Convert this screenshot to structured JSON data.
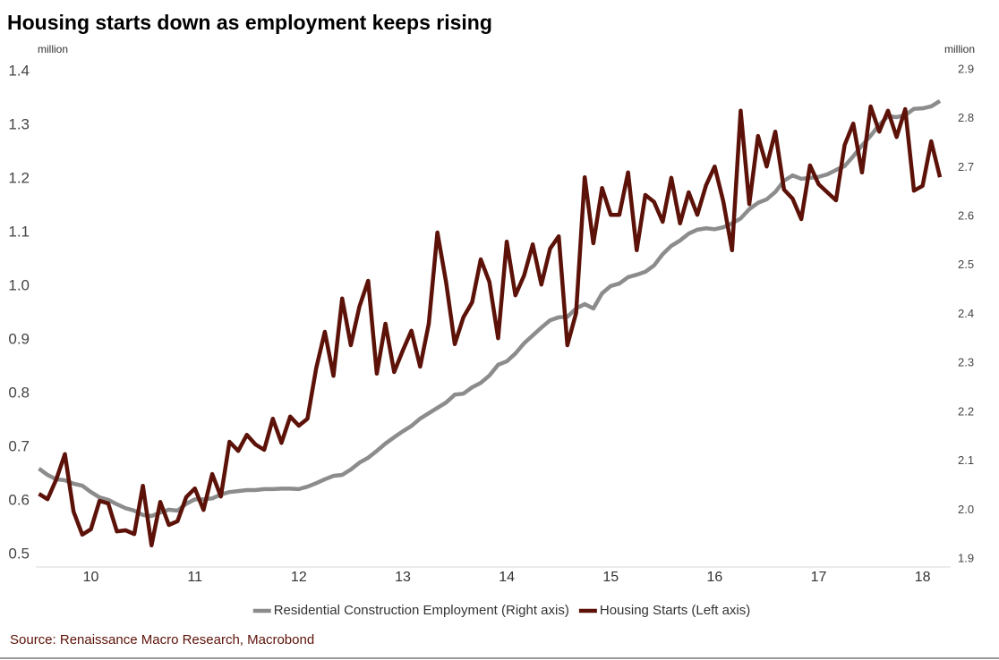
{
  "chart_data": {
    "type": "line",
    "title": "Housing starts down as employment keeps rising",
    "y_label": "million",
    "y2_label": "million",
    "source": "Source: Renaissance Macro Research, Macrobond",
    "x": [
      10,
      10.083,
      10.167,
      10.25,
      10.333,
      10.417,
      10.5,
      10.583,
      10.667,
      10.75,
      10.833,
      10.917,
      11,
      11.083,
      11.167,
      11.25,
      11.333,
      11.417,
      11.5,
      11.583,
      11.667,
      11.75,
      11.833,
      11.917,
      12,
      12.083,
      12.167,
      12.25,
      12.333,
      12.417,
      12.5,
      12.583,
      12.667,
      12.75,
      12.833,
      12.917,
      13,
      13.083,
      13.167,
      13.25,
      13.333,
      13.417,
      13.5,
      13.583,
      13.667,
      13.75,
      13.833,
      13.917,
      14,
      14.083,
      14.167,
      14.25,
      14.333,
      14.417,
      14.5,
      14.583,
      14.667,
      14.75,
      14.833,
      14.917,
      15,
      15.083,
      15.167,
      15.25,
      15.333,
      15.417,
      15.5,
      15.583,
      15.667,
      15.75,
      15.833,
      15.917,
      16,
      16.083,
      16.167,
      16.25,
      16.333,
      16.417,
      16.5,
      16.583,
      16.667,
      16.75,
      16.833,
      16.917,
      17,
      17.083,
      17.167,
      17.25,
      17.333,
      17.417,
      17.5,
      17.583,
      17.667,
      17.75,
      17.833,
      17.917,
      18,
      18.083,
      18.167,
      18.25,
      18.333,
      18.417,
      18.5,
      18.583,
      18.667
    ],
    "xlim": [
      9.97,
      18.77
    ],
    "xticks": [
      {
        "value": 10.5,
        "label": "10"
      },
      {
        "value": 11.5,
        "label": "11"
      },
      {
        "value": 12.5,
        "label": "12"
      },
      {
        "value": 13.5,
        "label": "13"
      },
      {
        "value": 14.5,
        "label": "14"
      },
      {
        "value": 15.5,
        "label": "15"
      },
      {
        "value": 16.5,
        "label": "16"
      },
      {
        "value": 17.5,
        "label": "17"
      },
      {
        "value": 18.5,
        "label": "18"
      }
    ],
    "ylim": [
      0.475,
      1.45
    ],
    "yticks": [
      0.5,
      0.6,
      0.7,
      0.8,
      0.9,
      {
        "value": 1,
        "label": "1.0"
      },
      1.1,
      1.2,
      1.3,
      1.4
    ],
    "y2lim": [
      1.882,
      2.951
    ],
    "y2ticks": [
      1.9,
      {
        "value": 2,
        "label": "2.0"
      },
      2.1,
      2.2,
      2.3,
      2.4,
      2.5,
      2.6,
      2.7,
      2.8,
      2.9
    ],
    "grid": false,
    "legend": "bottom",
    "series": [
      {
        "name": "Residential Construction Employment (Right axis)",
        "color": "#8c8c8c",
        "axis": "y2",
        "values": [
          2.085,
          2.072,
          2.063,
          2.061,
          2.054,
          2.05,
          2.037,
          2.026,
          2.021,
          2.012,
          2.004,
          1.999,
          1.99,
          1.988,
          1.995,
          2.001,
          1.999,
          2.013,
          2.022,
          2.022,
          2.024,
          2.032,
          2.037,
          2.039,
          2.041,
          2.041,
          2.043,
          2.043,
          2.044,
          2.044,
          2.043,
          2.048,
          2.055,
          2.063,
          2.07,
          2.072,
          2.083,
          2.097,
          2.107,
          2.121,
          2.136,
          2.149,
          2.161,
          2.172,
          2.187,
          2.198,
          2.209,
          2.22,
          2.236,
          2.238,
          2.251,
          2.26,
          2.275,
          2.297,
          2.304,
          2.32,
          2.341,
          2.357,
          2.373,
          2.388,
          2.394,
          2.395,
          2.412,
          2.421,
          2.412,
          2.443,
          2.458,
          2.463,
          2.476,
          2.481,
          2.487,
          2.5,
          2.523,
          2.54,
          2.551,
          2.565,
          2.573,
          2.576,
          2.574,
          2.578,
          2.586,
          2.596,
          2.615,
          2.628,
          2.635,
          2.65,
          2.673,
          2.684,
          2.677,
          2.679,
          2.681,
          2.686,
          2.695,
          2.703,
          2.723,
          2.745,
          2.765,
          2.787,
          2.805,
          2.803,
          2.807,
          2.82,
          2.821,
          2.825,
          2.836
        ]
      },
      {
        "name": "Housing Starts (Left axis)",
        "color": "#5c1208",
        "axis": "y",
        "values": [
          0.613,
          0.603,
          0.64,
          0.687,
          0.58,
          0.537,
          0.547,
          0.6,
          0.595,
          0.543,
          0.545,
          0.538,
          0.628,
          0.517,
          0.598,
          0.555,
          0.562,
          0.607,
          0.623,
          0.583,
          0.65,
          0.608,
          0.71,
          0.693,
          0.723,
          0.705,
          0.695,
          0.753,
          0.708,
          0.757,
          0.74,
          0.753,
          0.847,
          0.915,
          0.833,
          0.977,
          0.89,
          0.962,
          1.01,
          0.837,
          0.93,
          0.84,
          0.88,
          0.917,
          0.85,
          0.93,
          1.1,
          1.007,
          0.892,
          0.942,
          0.97,
          1.05,
          1.008,
          0.903,
          1.083,
          0.983,
          1.02,
          1.078,
          1.003,
          1.07,
          1.093,
          0.89,
          0.95,
          1.203,
          1.08,
          1.183,
          1.133,
          1.133,
          1.212,
          1.067,
          1.17,
          1.157,
          1.12,
          1.202,
          1.117,
          1.175,
          1.133,
          1.188,
          1.223,
          1.158,
          1.067,
          1.327,
          1.153,
          1.28,
          1.223,
          1.288,
          1.18,
          1.163,
          1.125,
          1.225,
          1.19,
          1.175,
          1.16,
          1.263,
          1.303,
          1.212,
          1.335,
          1.288,
          1.327,
          1.278,
          1.33,
          1.178,
          1.187,
          1.27,
          1.203
        ]
      }
    ]
  }
}
